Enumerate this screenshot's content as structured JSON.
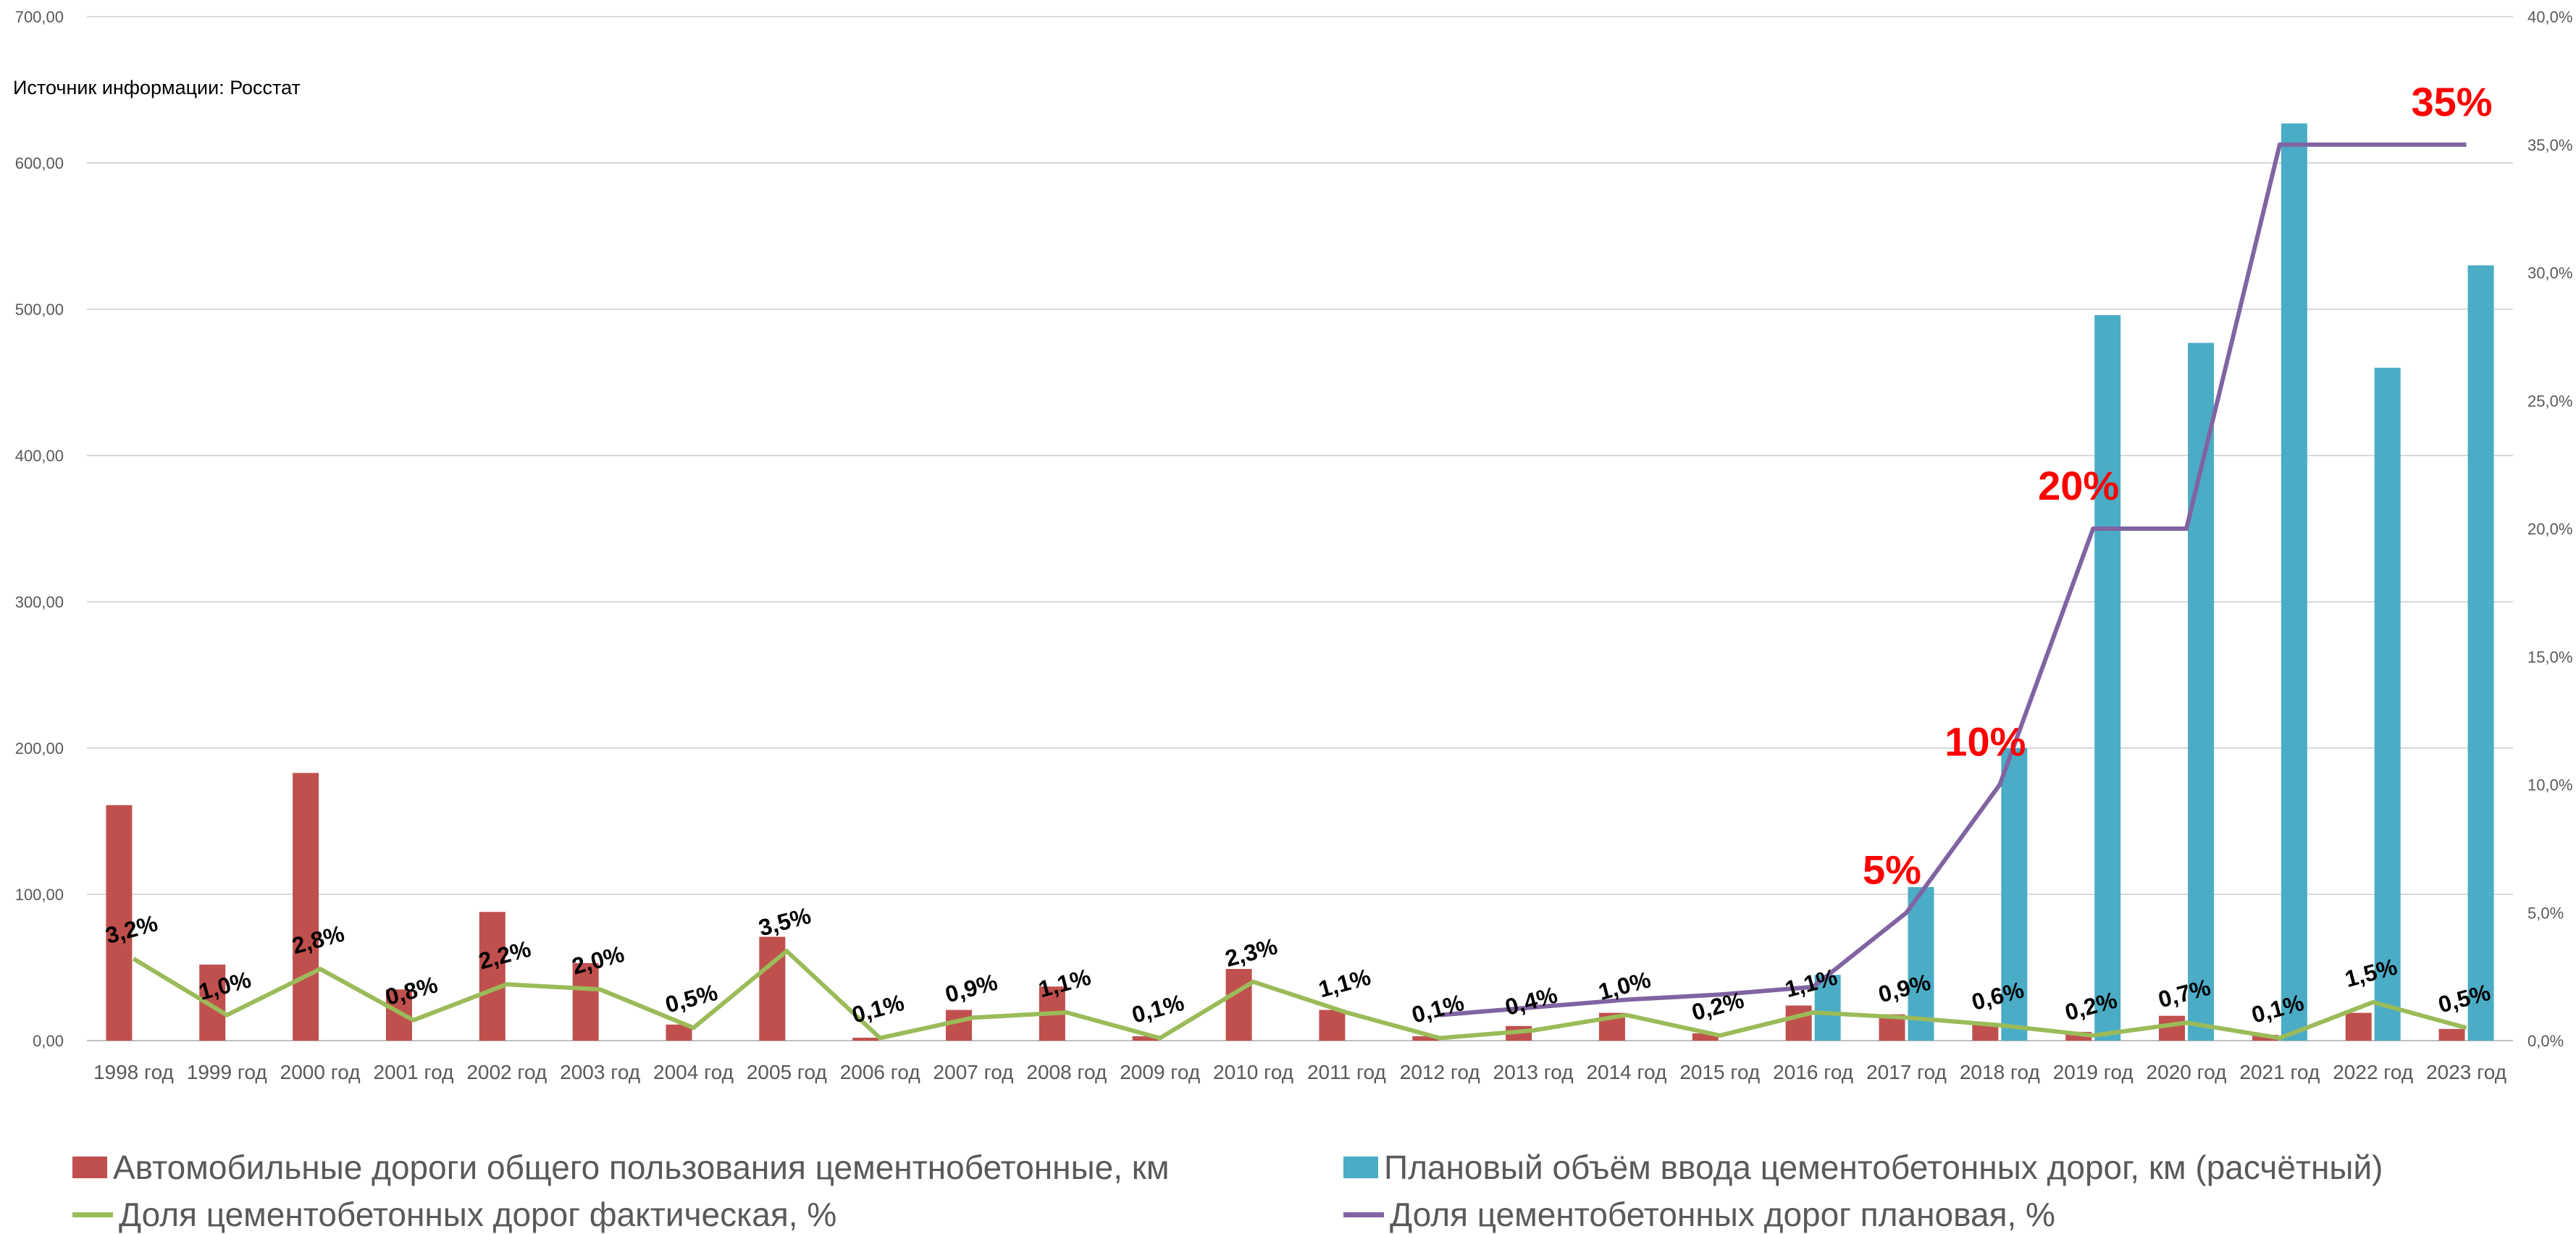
{
  "source_note": "Источник информации: Росстат",
  "colors": {
    "actual_bar": "#c0504d",
    "planned_bar": "#4bacc6",
    "actual_line": "#9bbb59",
    "planned_line": "#8064a2",
    "big_label": "#ff0000"
  },
  "chart_data": {
    "type": "bar",
    "categories": [
      "1998 год",
      "1999 год",
      "2000 год",
      "2001 год",
      "2002 год",
      "2003 год",
      "2004 год",
      "2005 год",
      "2006 год",
      "2007 год",
      "2008 год",
      "2009 год",
      "2010 год",
      "2011 год",
      "2012 год",
      "2013 год",
      "2014 год",
      "2015 год",
      "2016 год",
      "2017 год",
      "2018 год",
      "2019 год",
      "2020 год",
      "2021 год",
      "2022 год",
      "2023 год"
    ],
    "y_left": {
      "ylim": [
        0,
        700
      ],
      "ticks": [
        "0,00",
        "100,00",
        "200,00",
        "300,00",
        "400,00",
        "500,00",
        "600,00",
        "700,00"
      ]
    },
    "y_right": {
      "ylim": [
        0,
        40
      ],
      "ticks": [
        "0,0%",
        "5,0%",
        "10,0%",
        "15,0%",
        "20,0%",
        "25,0%",
        "30,0%",
        "35,0%",
        "40,0%"
      ]
    },
    "grid": true,
    "legend_position": "bottom",
    "series": [
      {
        "name": "Автомобильные дороги общего пользования цементнобетонные, км",
        "type": "bar",
        "axis": "left",
        "values": [
          161,
          52,
          183,
          35,
          88,
          53,
          11,
          71,
          2,
          21,
          37,
          3,
          49,
          21,
          3,
          10,
          19,
          5,
          24,
          18,
          12,
          6,
          17,
          4,
          19,
          8
        ]
      },
      {
        "name": "Плановый объём ввода цементобетонных дорог, км (расчётный)",
        "type": "bar",
        "axis": "left",
        "values": [
          null,
          null,
          null,
          null,
          null,
          null,
          null,
          null,
          null,
          null,
          null,
          null,
          null,
          null,
          null,
          null,
          null,
          null,
          45,
          105,
          200,
          496,
          477,
          627,
          460,
          530
        ]
      },
      {
        "name": "Доля цементобетонных дорог фактическая, %",
        "type": "line",
        "axis": "right",
        "values": [
          3.2,
          1.0,
          2.8,
          0.8,
          2.2,
          2.0,
          0.5,
          3.5,
          0.1,
          0.9,
          1.1,
          0.1,
          2.3,
          1.1,
          0.1,
          0.4,
          1.0,
          0.2,
          1.1,
          0.9,
          0.6,
          0.2,
          0.7,
          0.1,
          1.5,
          0.5
        ],
        "labels": [
          "3,2%",
          "1,0%",
          "2,8%",
          "0,8%",
          "2,2%",
          "2,0%",
          "0,5%",
          "3,5%",
          "0,1%",
          "0,9%",
          "1,1%",
          "0,1%",
          "2,3%",
          "1,1%",
          "0,1%",
          "0,4%",
          "1,0%",
          "0,2%",
          "1,1%",
          "0,9%",
          "0,6%",
          "0,2%",
          "0,7%",
          "0,1%",
          "1,5%",
          "0,5%"
        ]
      },
      {
        "name": "Доля цементобетонных дорог плановая, %",
        "type": "line",
        "axis": "right",
        "values": [
          null,
          null,
          null,
          null,
          null,
          null,
          null,
          null,
          null,
          null,
          null,
          null,
          null,
          null,
          1.0,
          1.3,
          1.6,
          1.8,
          2.1,
          5,
          10,
          20,
          20,
          35,
          35,
          35
        ]
      }
    ],
    "annotations": [
      {
        "category": "2017 год",
        "text": "5%",
        "value": 5
      },
      {
        "category": "2018 год",
        "text": "10%",
        "value": 10
      },
      {
        "category": "2019 год",
        "text": "20%",
        "value": 20
      },
      {
        "category": "2023 год",
        "text": "35%",
        "value": 35
      }
    ]
  }
}
